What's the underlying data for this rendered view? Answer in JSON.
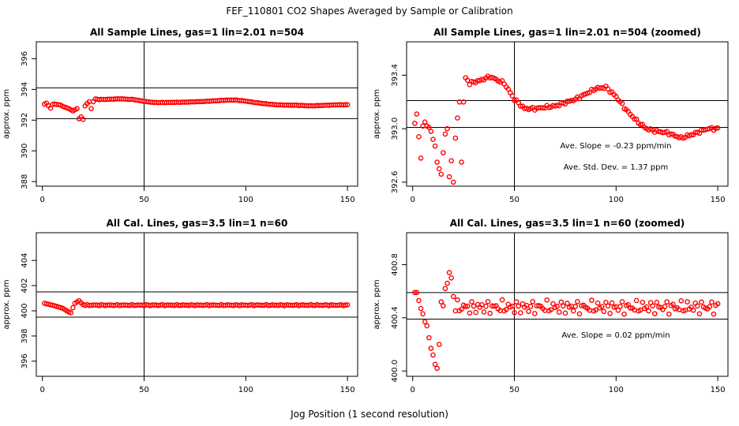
{
  "figure_title": "FEF_110801  CO2 Shapes Averaged by Sample or Calibration",
  "x_axis_label": "Jog Position (1 second resolution)",
  "colors": {
    "points": "#ff0000",
    "axes": "#000000",
    "background": "#ffffff"
  },
  "chart_data": [
    {
      "type": "scatter",
      "title": "All Sample Lines, gas=1 lin=2.01 n=504",
      "ylabel": "approx. ppm",
      "xlim": [
        -3,
        155
      ],
      "ylim": [
        387.7,
        397.1
      ],
      "xticks": [
        0,
        50,
        100,
        150
      ],
      "yticks": [
        388,
        390,
        392,
        394,
        396
      ],
      "vline": 50,
      "hlines": [
        392.1,
        394.1
      ],
      "annotations": [],
      "series_kind": "sample_full",
      "x": [],
      "y": []
    },
    {
      "type": "scatter",
      "title": "All Sample Lines, gas=1 lin=2.01 n=504 (zoomed)",
      "ylabel": "approx. ppm",
      "xlim": [
        -3,
        155
      ],
      "ylim": [
        392.57,
        393.65
      ],
      "xticks": [
        0,
        50,
        100,
        150
      ],
      "yticks": [
        392.6,
        393.0,
        393.4
      ],
      "vline": 50,
      "hlines": [
        393.01,
        393.21
      ],
      "annotations": [
        "Ave. Slope =  -0.23  ppm/min",
        "Ave. Std. Dev. =  1.37  ppm"
      ],
      "series_kind": "sample_zoom",
      "x": [],
      "y": []
    },
    {
      "type": "scatter",
      "title": "All Cal. Lines, gas=3.5 lin=1 n=60",
      "ylabel": "approx. ppm",
      "xlim": [
        -3,
        155
      ],
      "ylim": [
        394.8,
        406.2
      ],
      "xticks": [
        0,
        50,
        100,
        150
      ],
      "yticks": [
        396,
        398,
        400,
        402,
        404
      ],
      "vline": 50,
      "hlines": [
        399.5,
        401.5
      ],
      "annotations": [],
      "series_kind": "cal_full",
      "x": [],
      "y": []
    },
    {
      "type": "scatter",
      "title": "All Cal. Lines, gas=3.5 lin=1 n=60 (zoomed)",
      "ylabel": "approx. ppm",
      "xlim": [
        -3,
        155
      ],
      "ylim": [
        399.96,
        401.04
      ],
      "xticks": [
        0,
        50,
        100,
        150
      ],
      "yticks": [
        400.0,
        400.4,
        400.8
      ],
      "vline": 50,
      "hlines": [
        400.39,
        400.59
      ],
      "annotations": [
        "Ave. Slope =  0.02  ppm/min"
      ],
      "series_kind": "cal_zoom",
      "x": [],
      "y": []
    }
  ]
}
